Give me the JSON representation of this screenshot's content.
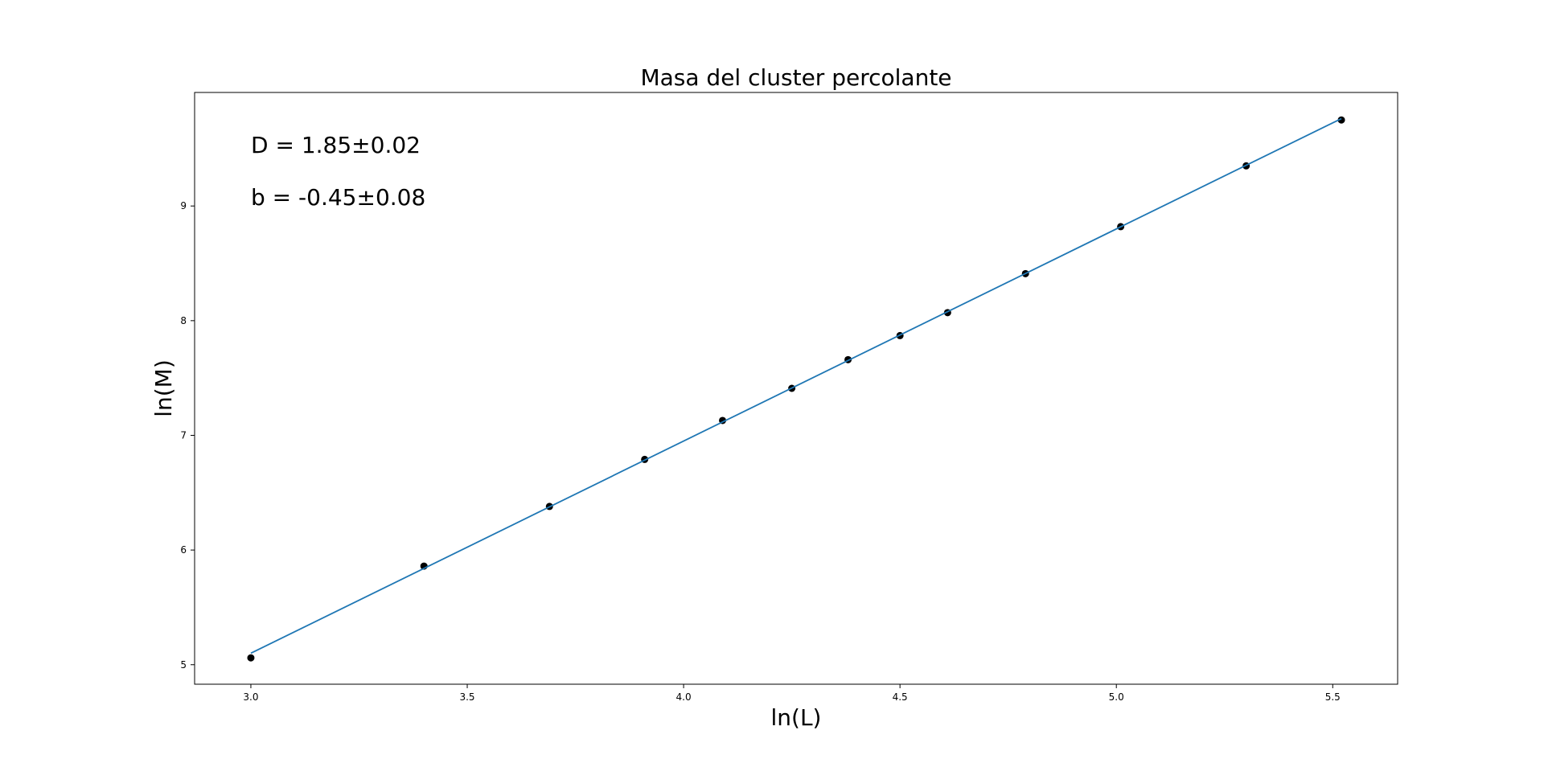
{
  "chart_data": {
    "type": "scatter",
    "title": "Masa del cluster percolante",
    "xlabel": "ln(L)",
    "ylabel": "ln(M)",
    "xlim": [
      2.87,
      5.65
    ],
    "ylim": [
      4.83,
      9.99
    ],
    "xticks": [
      3.0,
      3.5,
      4.0,
      4.5,
      5.0,
      5.5
    ],
    "xtick_labels": [
      "3.0",
      "3.5",
      "4.0",
      "4.5",
      "5.0",
      "5.5"
    ],
    "yticks": [
      5,
      6,
      7,
      8,
      9
    ],
    "ytick_labels": [
      "5",
      "6",
      "7",
      "8",
      "9"
    ],
    "grid": false,
    "annotations": [
      "D = 1.85±0.02",
      "b = -0.45±0.08"
    ],
    "points": {
      "x": [
        3.0,
        3.4,
        3.69,
        3.91,
        4.09,
        4.25,
        4.38,
        4.5,
        4.61,
        4.79,
        5.01,
        5.3,
        5.52
      ],
      "y": [
        5.06,
        5.86,
        6.38,
        6.79,
        7.13,
        7.41,
        7.66,
        7.87,
        8.07,
        8.41,
        8.82,
        9.35,
        9.75
      ],
      "color": "#000000"
    },
    "fit_line": {
      "slope": 1.85,
      "intercept": -0.45,
      "x_range": [
        3.0,
        5.52
      ],
      "color": "#1f77b4"
    }
  }
}
